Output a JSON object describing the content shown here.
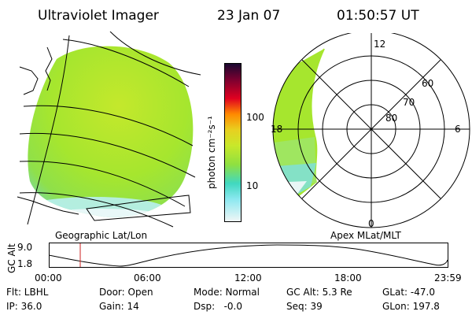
{
  "header": {
    "title": "Ultraviolet Imager",
    "date": "23 Jan 07",
    "time": "01:50:57 UT"
  },
  "colorbar": {
    "label": "photon cm⁻²s⁻¹",
    "ticks": [
      "100",
      "10"
    ]
  },
  "geo_panel": {
    "caption": "Geographic Lat/Lon"
  },
  "polar_panel": {
    "caption": "Apex MLat/MLT",
    "mlt_labels": {
      "top": "12",
      "left": "18",
      "right": "6",
      "bottom": "0"
    },
    "lat_labels": [
      "60",
      "70",
      "80"
    ]
  },
  "timeline": {
    "ylabel": "GC Alt",
    "ymax": "9.0",
    "ymin": "1.8",
    "xticks": [
      "00:00",
      "06:00",
      "12:00",
      "18:00",
      "23:59"
    ],
    "marker_time": "01:50:57"
  },
  "status": {
    "flt": "Flt: LBHL",
    "ip": "IP: 36.0",
    "door": "Door: Open",
    "gain": "Gain: 14",
    "mode": "Mode: Normal",
    "dsp": "Dsp:   -0.0",
    "gc_alt": "GC Alt: 5.3 Re",
    "seq": "Seq: 39",
    "glat": "GLat: -47.0",
    "glon": "GLon: 197.8"
  },
  "colors": {
    "aurora_green": "#a6e62e",
    "aurora_yellow": "#d8ea2a",
    "aurora_cyan": "#6fe0e0",
    "marker_red": "#cc2222"
  }
}
